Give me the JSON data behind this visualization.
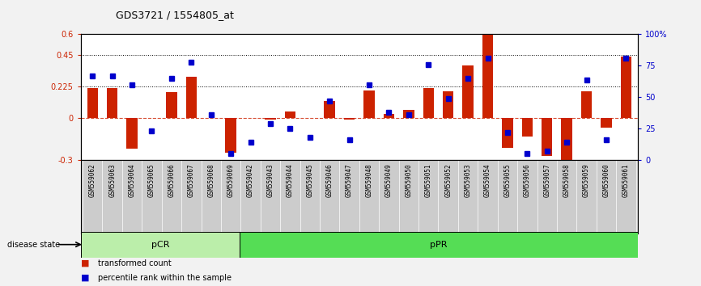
{
  "title": "GDS3721 / 1554805_at",
  "samples": [
    "GSM559062",
    "GSM559063",
    "GSM559064",
    "GSM559065",
    "GSM559066",
    "GSM559067",
    "GSM559068",
    "GSM559069",
    "GSM559042",
    "GSM559043",
    "GSM559044",
    "GSM559045",
    "GSM559046",
    "GSM559047",
    "GSM559048",
    "GSM559049",
    "GSM559050",
    "GSM559051",
    "GSM559052",
    "GSM559053",
    "GSM559054",
    "GSM559055",
    "GSM559056",
    "GSM559057",
    "GSM559058",
    "GSM559059",
    "GSM559060",
    "GSM559061"
  ],
  "bar_values": [
    0.215,
    0.215,
    -0.22,
    0.0,
    0.185,
    0.295,
    0.0,
    -0.245,
    0.0,
    -0.01,
    0.05,
    0.0,
    0.125,
    -0.01,
    0.2,
    0.03,
    0.06,
    0.215,
    0.19,
    0.38,
    0.6,
    -0.21,
    -0.13,
    -0.27,
    -0.31,
    0.19,
    -0.07,
    0.44
  ],
  "percentile_values_scaled": [
    67,
    67,
    60,
    23,
    65,
    78,
    36,
    5,
    14,
    29,
    25,
    18,
    47,
    16,
    60,
    38,
    36,
    76,
    49,
    65,
    81,
    22,
    5,
    7,
    14,
    64,
    16,
    81
  ],
  "pCR_count": 8,
  "pPR_count": 20,
  "ylim_left": [
    -0.3,
    0.6
  ],
  "yticks_left": [
    -0.3,
    0.0,
    0.225,
    0.45,
    0.6
  ],
  "ytick_labels_left": [
    "-0.3",
    "0",
    "0.225",
    "0.45",
    "0.6"
  ],
  "yticks_right": [
    0,
    25,
    50,
    75,
    100
  ],
  "ytick_labels_right": [
    "0",
    "25",
    "50",
    "75",
    "100%"
  ],
  "hlines": [
    0.225,
    0.45
  ],
  "bar_color": "#cc2200",
  "scatter_color": "#0000cc",
  "zero_line_color": "#cc2200",
  "pCR_color": "#bbeeaa",
  "pPR_color": "#55dd55",
  "label_bg_color": "#cccccc",
  "bg_color": "#ffffff"
}
